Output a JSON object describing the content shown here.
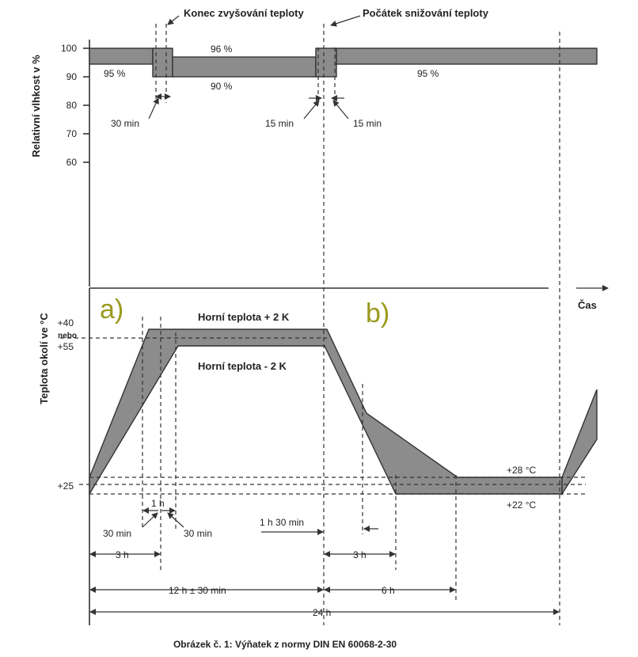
{
  "labels": {
    "top_left_annotation": "Konec zvyšování teploty",
    "top_right_annotation": "Počátek snižování teploty",
    "humidity_axis_title": "Relativní vlhkost v %",
    "temperature_axis_title": "Teplota okolí ve °C",
    "time_axis_label": "Čas",
    "marker_a": "a)",
    "marker_b": "b)",
    "upper_temp_label": "Horní teplota + 2 K",
    "lower_temp_label": "Horní teplota - 2 K",
    "caption": "Obrázek č. 1: Výňatek z normy DIN EN 60068-2-30"
  },
  "humidity_ticks": [
    "100",
    "90",
    "80",
    "70",
    "60"
  ],
  "humidity_values": {
    "left": "95 %",
    "mid_top": "96 %",
    "mid_bottom": "90 %",
    "right": "95 %"
  },
  "humidity_durations": {
    "rise_offset": "30 min",
    "fall_offset_left": "15 min",
    "fall_offset_right": "15 min"
  },
  "temperature_ticks": {
    "upper_1": "+40",
    "or_word": "nebo",
    "upper_2": "+55",
    "lower": "+25"
  },
  "temperature_marks": {
    "plus_28": "+28 °C",
    "plus_22": "+22 °C"
  },
  "durations": {
    "one_hour": "1 h",
    "thirty_min_left": "30 min",
    "thirty_min_right": "30 min",
    "three_h_left": "3 h",
    "one_h_thirty": "1 h 30 min",
    "three_h_right": "3 h",
    "twelve_h": "12 h ± 30 min",
    "six_h": "6 h",
    "twentyfour_h": "24 h"
  },
  "colors": {
    "band_fill": "#8c8c8c",
    "marker_color": "#9a9a1e",
    "line_color": "#333333"
  }
}
